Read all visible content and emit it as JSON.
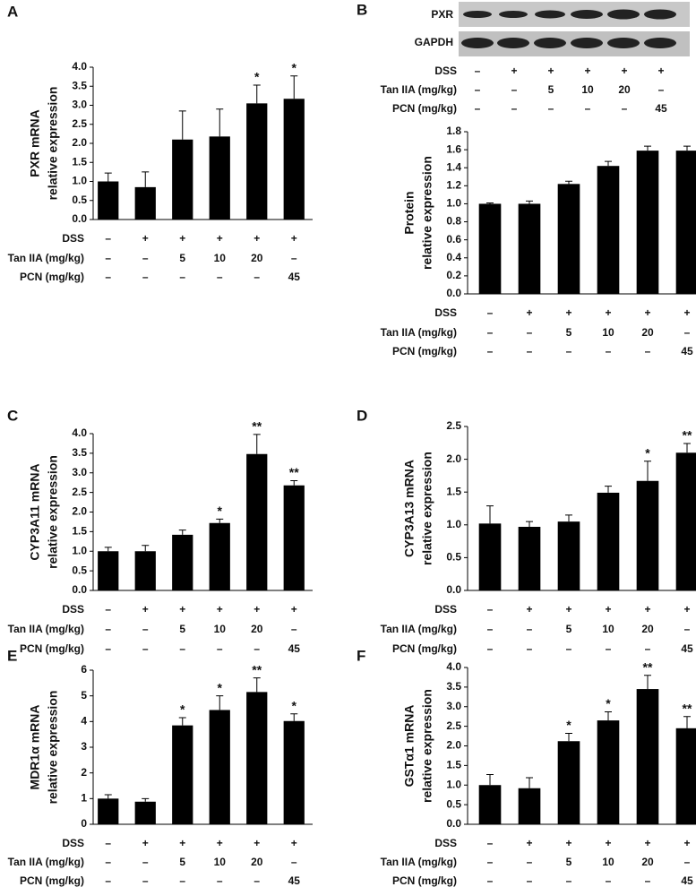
{
  "chart_data": [
    {
      "type": "bar",
      "panel": "A",
      "y_label": [
        "PXR mRNA",
        "relative expression"
      ],
      "color": "#000000",
      "values": [
        1.0,
        0.85,
        2.1,
        2.18,
        3.05,
        3.17
      ],
      "errors": [
        0.22,
        0.4,
        0.75,
        0.72,
        0.48,
        0.6
      ],
      "annotations": [
        null,
        null,
        null,
        null,
        "*",
        "*"
      ],
      "ylim": [
        0,
        4
      ],
      "yticks": [
        {
          "value": 0,
          "label": "0.0"
        },
        0.5,
        {
          "value": 1,
          "label": "1.0"
        },
        1.5,
        {
          "value": 2,
          "label": "2.0"
        },
        2.5,
        {
          "value": 3,
          "label": "3.0"
        },
        3.5,
        {
          "value": 4,
          "label": "4.0"
        }
      ],
      "conditions": [
        {
          "label": "DSS",
          "values": [
            "–",
            "+",
            "+",
            "+",
            "+",
            "+"
          ]
        },
        {
          "label": "Tan IIA (mg/kg)",
          "values": [
            "–",
            "–",
            "5",
            "10",
            "20",
            "–"
          ]
        },
        {
          "label": "PCN (mg/kg)",
          "values": [
            "–",
            "–",
            "–",
            "–",
            "–",
            "45"
          ]
        }
      ]
    },
    {
      "type": "bar",
      "panel": "B",
      "y_label": [
        "Protein",
        "relative expression"
      ],
      "color": "#000000",
      "blot": {
        "bands": [
          "PXR",
          "GAPDH"
        ],
        "conditions": [
          {
            "label": "DSS",
            "values": [
              "–",
              "+",
              "+",
              "+",
              "+",
              "+"
            ]
          },
          {
            "label": "Tan IIA (mg/kg)",
            "values": [
              "–",
              "–",
              "5",
              "10",
              "20",
              "–"
            ]
          },
          {
            "label": "PCN (mg/kg)",
            "values": [
              "–",
              "–",
              "–",
              "–",
              "–",
              "45"
            ]
          }
        ]
      },
      "values": [
        1.0,
        1.0,
        1.22,
        1.42,
        1.59,
        1.59
      ],
      "errors": [
        0.01,
        0.03,
        0.03,
        0.05,
        0.05,
        0.05
      ],
      "annotations": [
        null,
        null,
        null,
        null,
        null,
        null
      ],
      "ylim": [
        0,
        1.8
      ],
      "yticks": [
        {
          "value": 0,
          "label": "0.0"
        },
        0.2,
        0.4,
        0.6,
        0.8,
        {
          "value": 1,
          "label": "1.0"
        },
        1.2,
        1.4,
        1.6,
        1.8
      ],
      "conditions": [
        {
          "label": "DSS",
          "values": [
            "–",
            "+",
            "+",
            "+",
            "+",
            "+"
          ]
        },
        {
          "label": "Tan IIA (mg/kg)",
          "values": [
            "–",
            "–",
            "5",
            "10",
            "20",
            "–"
          ]
        },
        {
          "label": "PCN (mg/kg)",
          "values": [
            "–",
            "–",
            "–",
            "–",
            "–",
            "45"
          ]
        }
      ]
    },
    {
      "type": "bar",
      "panel": "C",
      "y_label": [
        "CYP3A11 mRNA",
        "relative expression"
      ],
      "color": "#000000",
      "values": [
        1.0,
        1.0,
        1.42,
        1.72,
        3.48,
        2.68
      ],
      "errors": [
        0.1,
        0.15,
        0.12,
        0.1,
        0.5,
        0.12
      ],
      "annotations": [
        null,
        null,
        null,
        "*",
        "**",
        "**"
      ],
      "ylim": [
        0,
        4
      ],
      "yticks": [
        {
          "value": 0,
          "label": "0.0"
        },
        0.5,
        {
          "value": 1,
          "label": "1.0"
        },
        1.5,
        {
          "value": 2,
          "label": "2.0"
        },
        2.5,
        {
          "value": 3,
          "label": "3.0"
        },
        3.5,
        {
          "value": 4,
          "label": "4.0"
        }
      ],
      "conditions": [
        {
          "label": "DSS",
          "values": [
            "–",
            "+",
            "+",
            "+",
            "+",
            "+"
          ]
        },
        {
          "label": "Tan IIA (mg/kg)",
          "values": [
            "–",
            "–",
            "5",
            "10",
            "20",
            "–"
          ]
        },
        {
          "label": "PCN (mg/kg)",
          "values": [
            "–",
            "–",
            "–",
            "–",
            "–",
            "45"
          ]
        }
      ]
    },
    {
      "type": "bar",
      "panel": "D",
      "y_label": [
        "CYP3A13 mRNA",
        "relative expression"
      ],
      "color": "#000000",
      "values": [
        1.02,
        0.97,
        1.05,
        1.49,
        1.67,
        2.1
      ],
      "errors": [
        0.27,
        0.08,
        0.1,
        0.1,
        0.3,
        0.14
      ],
      "annotations": [
        null,
        null,
        null,
        null,
        "*",
        "**"
      ],
      "ylim": [
        0,
        2.5
      ],
      "yticks": [
        {
          "value": 0,
          "label": "0.0"
        },
        0.5,
        {
          "value": 1,
          "label": "1.0"
        },
        1.5,
        {
          "value": 2,
          "label": "2.0"
        },
        2.5
      ],
      "conditions": [
        {
          "label": "DSS",
          "values": [
            "–",
            "+",
            "+",
            "+",
            "+",
            "+"
          ]
        },
        {
          "label": "Tan IIA (mg/kg)",
          "values": [
            "–",
            "–",
            "5",
            "10",
            "20",
            "–"
          ]
        },
        {
          "label": "PCN (mg/kg)",
          "values": [
            "–",
            "–",
            "–",
            "–",
            "–",
            "45"
          ]
        }
      ]
    },
    {
      "type": "bar",
      "panel": "E",
      "y_label": [
        "MDR1α mRNA",
        "relative expression"
      ],
      "color": "#000000",
      "values": [
        1.0,
        0.88,
        3.85,
        4.45,
        5.15,
        4.02
      ],
      "errors": [
        0.15,
        0.12,
        0.3,
        0.55,
        0.55,
        0.28
      ],
      "annotations": [
        null,
        null,
        "*",
        "*",
        "**",
        "*"
      ],
      "ylim": [
        0,
        6
      ],
      "yticks": [
        0,
        1,
        2,
        3,
        4,
        5,
        6
      ],
      "conditions": [
        {
          "label": "DSS",
          "values": [
            "–",
            "+",
            "+",
            "+",
            "+",
            "+"
          ]
        },
        {
          "label": "Tan IIA (mg/kg)",
          "values": [
            "–",
            "–",
            "5",
            "10",
            "20",
            "–"
          ]
        },
        {
          "label": "PCN (mg/kg)",
          "values": [
            "–",
            "–",
            "–",
            "–",
            "–",
            "45"
          ]
        }
      ]
    },
    {
      "type": "bar",
      "panel": "F",
      "y_label": [
        "GSTα1 mRNA",
        "relative expression"
      ],
      "color": "#000000",
      "values": [
        1.0,
        0.92,
        2.12,
        2.65,
        3.45,
        2.45
      ],
      "errors": [
        0.27,
        0.27,
        0.2,
        0.22,
        0.35,
        0.3
      ],
      "annotations": [
        null,
        null,
        "*",
        "*",
        "**",
        "**"
      ],
      "ylim": [
        0,
        4
      ],
      "yticks": [
        {
          "value": 0,
          "label": "0.0"
        },
        0.5,
        {
          "value": 1,
          "label": "1.0"
        },
        1.5,
        {
          "value": 2,
          "label": "2.0"
        },
        2.5,
        {
          "value": 3,
          "label": "3.0"
        },
        3.5,
        {
          "value": 4,
          "label": "4.0"
        }
      ],
      "conditions": [
        {
          "label": "DSS",
          "values": [
            "–",
            "+",
            "+",
            "+",
            "+",
            "+"
          ]
        },
        {
          "label": "Tan IIA (mg/kg)",
          "values": [
            "–",
            "–",
            "5",
            "10",
            "20",
            "–"
          ]
        },
        {
          "label": "PCN (mg/kg)",
          "values": [
            "–",
            "–",
            "–",
            "–",
            "–",
            "45"
          ]
        }
      ]
    }
  ]
}
